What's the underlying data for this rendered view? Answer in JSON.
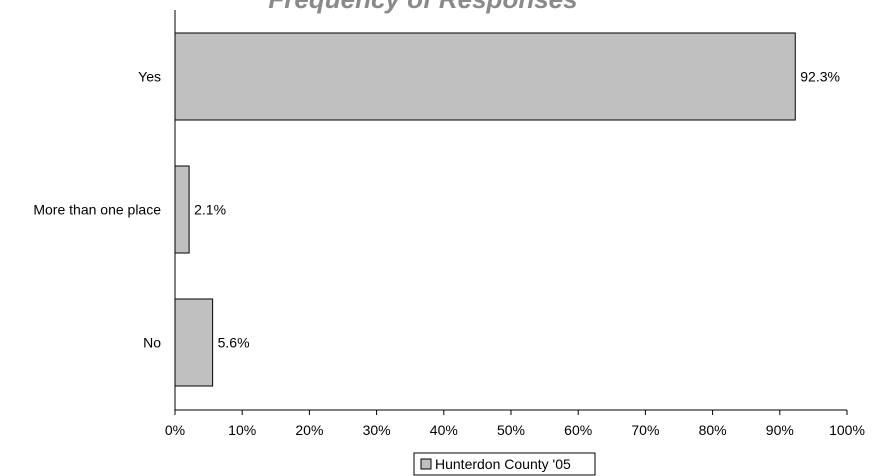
{
  "chart_data": {
    "type": "bar",
    "orientation": "horizontal",
    "title": "Frequency of Responses",
    "categories": [
      "Yes",
      "More than one place",
      "No"
    ],
    "series": [
      {
        "name": "Hunterdon County '05",
        "values": [
          92.3,
          2.1,
          5.6
        ]
      }
    ],
    "data_labels": [
      "92.3%",
      "2.1%",
      "5.6%"
    ],
    "x_ticks": [
      "0%",
      "10%",
      "20%",
      "30%",
      "40%",
      "50%",
      "60%",
      "70%",
      "80%",
      "90%",
      "100%"
    ],
    "xlim": [
      0,
      100
    ],
    "xlabel": "",
    "ylabel": "",
    "grid": false,
    "legend_position": "bottom-center",
    "colors": {
      "bar_fill": "#c0c0c0",
      "bar_stroke": "#000000",
      "title": "#8a8a8a"
    }
  }
}
